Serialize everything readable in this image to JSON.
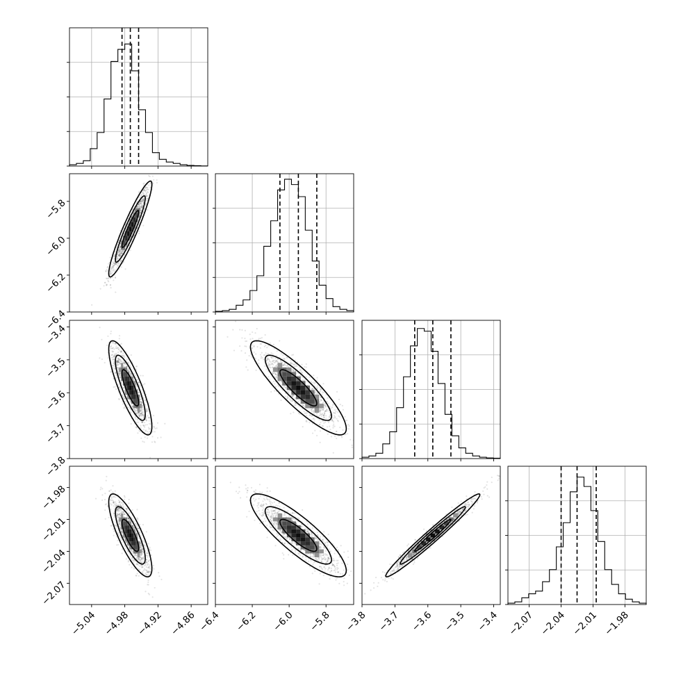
{
  "chart_data": {
    "type": "corner",
    "grid": true,
    "colors": {
      "ink": "#000000",
      "grid": "#b0b0b0",
      "background": "#ffffff"
    },
    "parameters": [
      {
        "index": 0,
        "median": -4.97,
        "quantiles": [
          -4.985,
          -4.97,
          -4.955
        ],
        "range": [
          -5.08,
          -4.83
        ],
        "sigma": 0.015,
        "ticks": [
          -5.04,
          -4.98,
          -4.92,
          -4.86
        ],
        "tick_labels": [
          "−5.04",
          "−4.98",
          "−4.92",
          "−4.86"
        ],
        "histogram": [
          0.01,
          0.02,
          0.04,
          0.13,
          0.25,
          0.5,
          0.78,
          0.87,
          0.91,
          0.71,
          0.42,
          0.25,
          0.1,
          0.05,
          0.03,
          0.02,
          0.01,
          0.005,
          0.003,
          0.001
        ]
      },
      {
        "index": 1,
        "median": -5.95,
        "quantiles": [
          -6.05,
          -5.95,
          -5.85
        ],
        "range": [
          -6.4,
          -5.65
        ],
        "sigma": 0.1,
        "ticks": [
          -6.4,
          -6.2,
          -6.0,
          -5.8
        ],
        "tick_labels": [
          "−6.4",
          "−6.2",
          "−6.0",
          "−5.8"
        ],
        "histogram": [
          0.005,
          0.01,
          0.02,
          0.05,
          0.09,
          0.16,
          0.27,
          0.49,
          0.68,
          0.91,
          0.99,
          0.95,
          0.86,
          0.61,
          0.38,
          0.2,
          0.1,
          0.04,
          0.02,
          0.01
        ]
      },
      {
        "index": 2,
        "median": -3.585,
        "quantiles": [
          -3.64,
          -3.585,
          -3.53
        ],
        "range": [
          -3.8,
          -3.38
        ],
        "sigma": 0.055,
        "ticks": [
          -3.8,
          -3.7,
          -3.6,
          -3.5,
          -3.4
        ],
        "tick_labels": [
          "−3.8",
          "−3.7",
          "−3.6",
          "−3.5",
          "−3.4"
        ],
        "histogram": [
          0.01,
          0.02,
          0.04,
          0.11,
          0.2,
          0.38,
          0.61,
          0.84,
          0.97,
          0.95,
          0.8,
          0.56,
          0.33,
          0.17,
          0.08,
          0.04,
          0.02,
          0.01,
          0.005,
          0.003
        ]
      },
      {
        "index": 3,
        "median": -2.025,
        "quantiles": [
          -2.04,
          -2.025,
          -2.007
        ],
        "range": [
          -2.09,
          -1.96
        ],
        "sigma": 0.015,
        "ticks": [
          -2.07,
          -2.04,
          -2.01,
          -1.98
        ],
        "tick_labels": [
          "−2.07",
          "−2.04",
          "−2.01",
          "−1.98"
        ],
        "histogram": [
          0.01,
          0.02,
          0.05,
          0.08,
          0.1,
          0.17,
          0.26,
          0.43,
          0.61,
          0.84,
          0.95,
          0.88,
          0.7,
          0.47,
          0.26,
          0.15,
          0.08,
          0.04,
          0.02,
          0.01
        ]
      }
    ],
    "correlations": [
      {
        "x": 0,
        "y": 1,
        "r": 0.93
      },
      {
        "x": 0,
        "y": 2,
        "r": -0.82
      },
      {
        "x": 1,
        "y": 2,
        "r": -0.87
      },
      {
        "x": 0,
        "y": 3,
        "r": -0.8
      },
      {
        "x": 1,
        "y": 3,
        "r": -0.85
      },
      {
        "x": 2,
        "y": 3,
        "r": 0.98
      }
    ],
    "contour_levels_sigma": [
      1.0,
      1.8,
      2.6
    ]
  }
}
